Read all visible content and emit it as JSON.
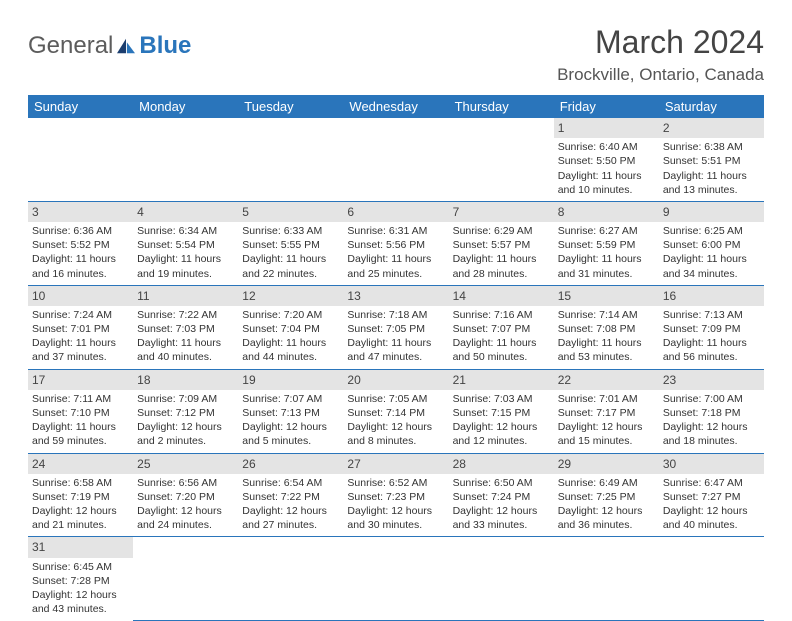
{
  "brand": {
    "part1": "General",
    "part2": "Blue"
  },
  "title": "March 2024",
  "location": "Brockville, Ontario, Canada",
  "colors": {
    "header_bg": "#2a75bb",
    "header_text": "#ffffff",
    "daynum_bg": "#e4e4e4",
    "rule": "#2a75bb",
    "brand_gray": "#5c5c5c",
    "brand_blue": "#2a75bb"
  },
  "weekdays": [
    "Sunday",
    "Monday",
    "Tuesday",
    "Wednesday",
    "Thursday",
    "Friday",
    "Saturday"
  ],
  "weeks": [
    [
      null,
      null,
      null,
      null,
      null,
      {
        "n": "1",
        "sr": "Sunrise: 6:40 AM",
        "ss": "Sunset: 5:50 PM",
        "d1": "Daylight: 11 hours",
        "d2": "and 10 minutes."
      },
      {
        "n": "2",
        "sr": "Sunrise: 6:38 AM",
        "ss": "Sunset: 5:51 PM",
        "d1": "Daylight: 11 hours",
        "d2": "and 13 minutes."
      }
    ],
    [
      {
        "n": "3",
        "sr": "Sunrise: 6:36 AM",
        "ss": "Sunset: 5:52 PM",
        "d1": "Daylight: 11 hours",
        "d2": "and 16 minutes."
      },
      {
        "n": "4",
        "sr": "Sunrise: 6:34 AM",
        "ss": "Sunset: 5:54 PM",
        "d1": "Daylight: 11 hours",
        "d2": "and 19 minutes."
      },
      {
        "n": "5",
        "sr": "Sunrise: 6:33 AM",
        "ss": "Sunset: 5:55 PM",
        "d1": "Daylight: 11 hours",
        "d2": "and 22 minutes."
      },
      {
        "n": "6",
        "sr": "Sunrise: 6:31 AM",
        "ss": "Sunset: 5:56 PM",
        "d1": "Daylight: 11 hours",
        "d2": "and 25 minutes."
      },
      {
        "n": "7",
        "sr": "Sunrise: 6:29 AM",
        "ss": "Sunset: 5:57 PM",
        "d1": "Daylight: 11 hours",
        "d2": "and 28 minutes."
      },
      {
        "n": "8",
        "sr": "Sunrise: 6:27 AM",
        "ss": "Sunset: 5:59 PM",
        "d1": "Daylight: 11 hours",
        "d2": "and 31 minutes."
      },
      {
        "n": "9",
        "sr": "Sunrise: 6:25 AM",
        "ss": "Sunset: 6:00 PM",
        "d1": "Daylight: 11 hours",
        "d2": "and 34 minutes."
      }
    ],
    [
      {
        "n": "10",
        "sr": "Sunrise: 7:24 AM",
        "ss": "Sunset: 7:01 PM",
        "d1": "Daylight: 11 hours",
        "d2": "and 37 minutes."
      },
      {
        "n": "11",
        "sr": "Sunrise: 7:22 AM",
        "ss": "Sunset: 7:03 PM",
        "d1": "Daylight: 11 hours",
        "d2": "and 40 minutes."
      },
      {
        "n": "12",
        "sr": "Sunrise: 7:20 AM",
        "ss": "Sunset: 7:04 PM",
        "d1": "Daylight: 11 hours",
        "d2": "and 44 minutes."
      },
      {
        "n": "13",
        "sr": "Sunrise: 7:18 AM",
        "ss": "Sunset: 7:05 PM",
        "d1": "Daylight: 11 hours",
        "d2": "and 47 minutes."
      },
      {
        "n": "14",
        "sr": "Sunrise: 7:16 AM",
        "ss": "Sunset: 7:07 PM",
        "d1": "Daylight: 11 hours",
        "d2": "and 50 minutes."
      },
      {
        "n": "15",
        "sr": "Sunrise: 7:14 AM",
        "ss": "Sunset: 7:08 PM",
        "d1": "Daylight: 11 hours",
        "d2": "and 53 minutes."
      },
      {
        "n": "16",
        "sr": "Sunrise: 7:13 AM",
        "ss": "Sunset: 7:09 PM",
        "d1": "Daylight: 11 hours",
        "d2": "and 56 minutes."
      }
    ],
    [
      {
        "n": "17",
        "sr": "Sunrise: 7:11 AM",
        "ss": "Sunset: 7:10 PM",
        "d1": "Daylight: 11 hours",
        "d2": "and 59 minutes."
      },
      {
        "n": "18",
        "sr": "Sunrise: 7:09 AM",
        "ss": "Sunset: 7:12 PM",
        "d1": "Daylight: 12 hours",
        "d2": "and 2 minutes."
      },
      {
        "n": "19",
        "sr": "Sunrise: 7:07 AM",
        "ss": "Sunset: 7:13 PM",
        "d1": "Daylight: 12 hours",
        "d2": "and 5 minutes."
      },
      {
        "n": "20",
        "sr": "Sunrise: 7:05 AM",
        "ss": "Sunset: 7:14 PM",
        "d1": "Daylight: 12 hours",
        "d2": "and 8 minutes."
      },
      {
        "n": "21",
        "sr": "Sunrise: 7:03 AM",
        "ss": "Sunset: 7:15 PM",
        "d1": "Daylight: 12 hours",
        "d2": "and 12 minutes."
      },
      {
        "n": "22",
        "sr": "Sunrise: 7:01 AM",
        "ss": "Sunset: 7:17 PM",
        "d1": "Daylight: 12 hours",
        "d2": "and 15 minutes."
      },
      {
        "n": "23",
        "sr": "Sunrise: 7:00 AM",
        "ss": "Sunset: 7:18 PM",
        "d1": "Daylight: 12 hours",
        "d2": "and 18 minutes."
      }
    ],
    [
      {
        "n": "24",
        "sr": "Sunrise: 6:58 AM",
        "ss": "Sunset: 7:19 PM",
        "d1": "Daylight: 12 hours",
        "d2": "and 21 minutes."
      },
      {
        "n": "25",
        "sr": "Sunrise: 6:56 AM",
        "ss": "Sunset: 7:20 PM",
        "d1": "Daylight: 12 hours",
        "d2": "and 24 minutes."
      },
      {
        "n": "26",
        "sr": "Sunrise: 6:54 AM",
        "ss": "Sunset: 7:22 PM",
        "d1": "Daylight: 12 hours",
        "d2": "and 27 minutes."
      },
      {
        "n": "27",
        "sr": "Sunrise: 6:52 AM",
        "ss": "Sunset: 7:23 PM",
        "d1": "Daylight: 12 hours",
        "d2": "and 30 minutes."
      },
      {
        "n": "28",
        "sr": "Sunrise: 6:50 AM",
        "ss": "Sunset: 7:24 PM",
        "d1": "Daylight: 12 hours",
        "d2": "and 33 minutes."
      },
      {
        "n": "29",
        "sr": "Sunrise: 6:49 AM",
        "ss": "Sunset: 7:25 PM",
        "d1": "Daylight: 12 hours",
        "d2": "and 36 minutes."
      },
      {
        "n": "30",
        "sr": "Sunrise: 6:47 AM",
        "ss": "Sunset: 7:27 PM",
        "d1": "Daylight: 12 hours",
        "d2": "and 40 minutes."
      }
    ],
    [
      {
        "n": "31",
        "sr": "Sunrise: 6:45 AM",
        "ss": "Sunset: 7:28 PM",
        "d1": "Daylight: 12 hours",
        "d2": "and 43 minutes."
      },
      null,
      null,
      null,
      null,
      null,
      null
    ]
  ]
}
